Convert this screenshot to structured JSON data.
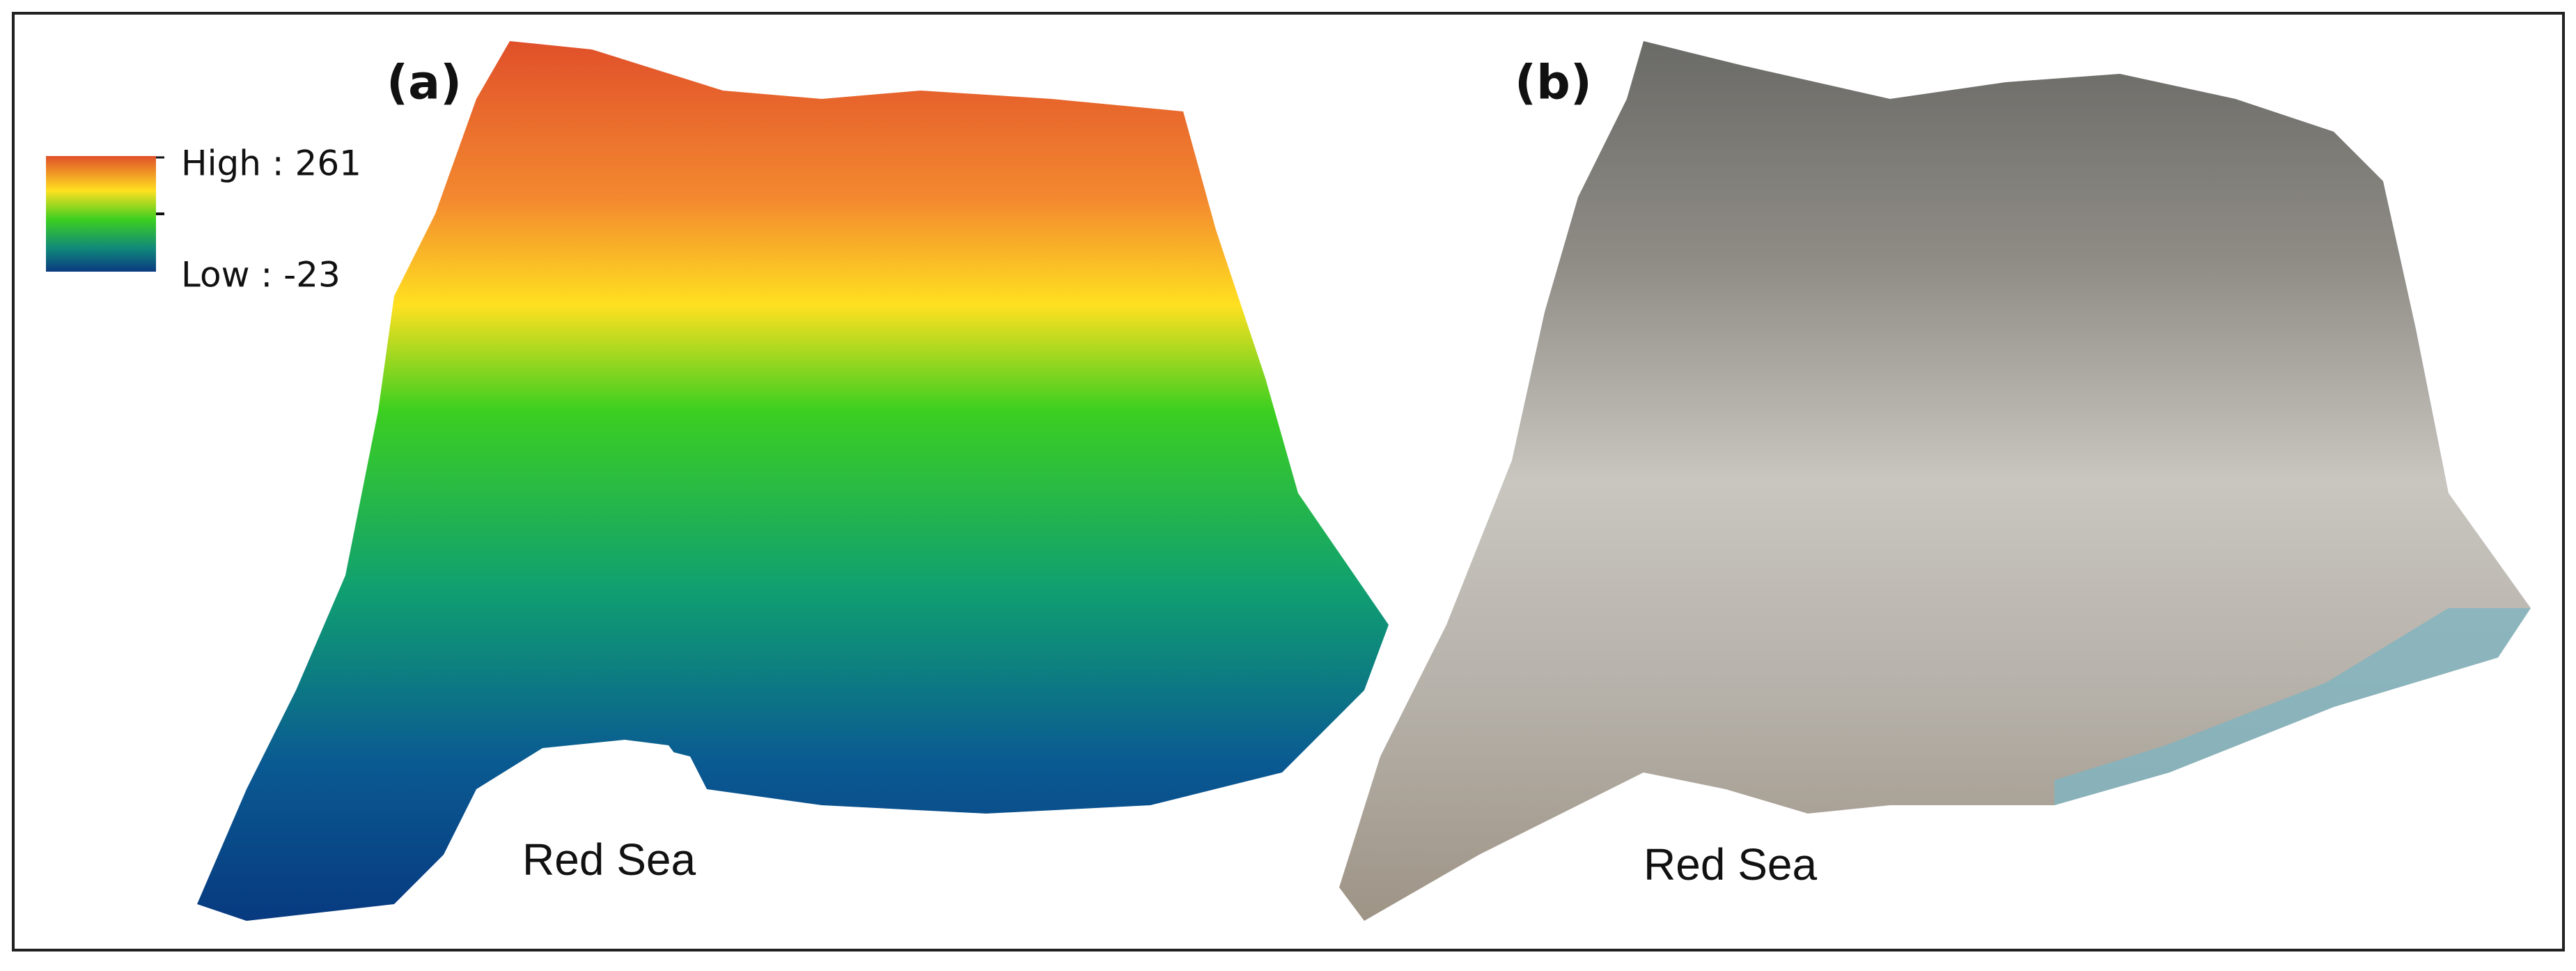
{
  "panels": [
    {
      "label": "(a)",
      "legend": {
        "high": "High : 261",
        "low": "Low : -23"
      },
      "caption": "Red Sea"
    },
    {
      "label": "(b)",
      "caption": "Red Sea"
    }
  ]
}
